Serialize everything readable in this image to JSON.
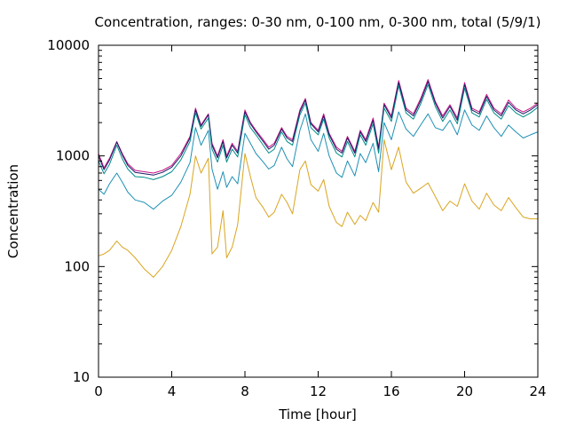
{
  "chart_data": {
    "type": "line",
    "title": "Concentration, ranges: 0-30 nm, 0-100 nm, 0-300 nm, total (5/9/1)",
    "xlabel": "Time [hour]",
    "ylabel": "Concentration",
    "xlim": [
      0,
      24
    ],
    "ylim": [
      10,
      10000
    ],
    "yscale": "log",
    "grid": false,
    "legend": "none",
    "x_ticks": [
      0,
      4,
      8,
      12,
      16,
      20,
      24
    ],
    "x_tick_labels": [
      "0",
      "4",
      "8",
      "12",
      "16",
      "20",
      "24"
    ],
    "y_ticks": [
      10,
      100,
      1000,
      10000
    ],
    "y_tick_labels": [
      "10",
      "100",
      "1000",
      "10000"
    ],
    "x": [
      0,
      0.3,
      0.6,
      1.0,
      1.3,
      1.6,
      2.0,
      2.5,
      3.0,
      3.5,
      4.0,
      4.5,
      5.0,
      5.3,
      5.6,
      6.0,
      6.2,
      6.5,
      6.8,
      7.0,
      7.3,
      7.6,
      8.0,
      8.3,
      8.6,
      9.0,
      9.3,
      9.6,
      10.0,
      10.3,
      10.6,
      11.0,
      11.3,
      11.6,
      12.0,
      12.3,
      12.6,
      13.0,
      13.3,
      13.6,
      14.0,
      14.3,
      14.6,
      15.0,
      15.3,
      15.6,
      16.0,
      16.4,
      16.8,
      17.2,
      17.6,
      18.0,
      18.4,
      18.8,
      19.2,
      19.6,
      20.0,
      20.4,
      20.8,
      21.2,
      21.6,
      22.0,
      22.4,
      22.8,
      23.2,
      23.6,
      24.0
    ],
    "series": [
      {
        "color": "#c71585",
        "values": [
          1050,
          780,
          950,
          1350,
          1050,
          850,
          740,
          720,
          700,
          740,
          820,
          1050,
          1500,
          2700,
          1900,
          2400,
          1300,
          1000,
          1400,
          1000,
          1300,
          1100,
          2600,
          2000,
          1700,
          1400,
          1200,
          1300,
          1800,
          1500,
          1400,
          2600,
          3300,
          2000,
          1700,
          2400,
          1600,
          1200,
          1100,
          1500,
          1100,
          1700,
          1400,
          2200,
          1200,
          3000,
          2300,
          4800,
          2700,
          2400,
          3300,
          4900,
          3100,
          2300,
          2900,
          2200,
          4600,
          2700,
          2500,
          3600,
          2700,
          2400,
          3200,
          2700,
          2500,
          2700,
          3000
        ]
      },
      {
        "color": "#1a1a66",
        "values": [
          1000,
          750,
          920,
          1330,
          1020,
          820,
          710,
          690,
          670,
          710,
          790,
          1000,
          1450,
          2600,
          1850,
          2350,
          1250,
          960,
          1350,
          960,
          1250,
          1060,
          2500,
          1950,
          1650,
          1350,
          1150,
          1250,
          1750,
          1450,
          1350,
          2500,
          3200,
          1950,
          1650,
          2300,
          1550,
          1150,
          1060,
          1450,
          1060,
          1650,
          1350,
          2100,
          1150,
          2900,
          2200,
          4600,
          2600,
          2300,
          3150,
          4700,
          3000,
          2200,
          2800,
          2100,
          4400,
          2600,
          2400,
          3450,
          2600,
          2300,
          3050,
          2600,
          2400,
          2600,
          2900
        ]
      },
      {
        "color": "#008b8b",
        "values": [
          900,
          690,
          840,
          1250,
          940,
          760,
          650,
          640,
          610,
          650,
          720,
          920,
          1350,
          2450,
          1750,
          2200,
          1150,
          880,
          1250,
          880,
          1150,
          980,
          2350,
          1800,
          1550,
          1250,
          1060,
          1150,
          1650,
          1350,
          1250,
          2350,
          3000,
          1800,
          1550,
          2150,
          1450,
          1060,
          980,
          1350,
          980,
          1550,
          1250,
          1950,
          1060,
          2700,
          2050,
          4300,
          2450,
          2150,
          2950,
          4400,
          2800,
          2050,
          2600,
          1950,
          4100,
          2450,
          2250,
          3250,
          2450,
          2150,
          2850,
          2450,
          2250,
          2450,
          2750
        ]
      },
      {
        "color": "#1e90b4",
        "values": [
          500,
          450,
          560,
          700,
          580,
          470,
          400,
          380,
          330,
          390,
          440,
          580,
          870,
          1800,
          1250,
          1700,
          760,
          500,
          720,
          520,
          650,
          560,
          1600,
          1300,
          1050,
          880,
          760,
          820,
          1200,
          940,
          800,
          1700,
          2400,
          1400,
          1100,
          1600,
          1000,
          700,
          640,
          900,
          660,
          1050,
          870,
          1300,
          720,
          2000,
          1400,
          2500,
          1750,
          1500,
          1900,
          2400,
          1800,
          1700,
          2100,
          1550,
          2600,
          1900,
          1700,
          2300,
          1800,
          1500,
          1900,
          1650,
          1450,
          1550,
          1650
        ]
      },
      {
        "color": "#daa520",
        "values": [
          125,
          130,
          140,
          170,
          150,
          140,
          120,
          95,
          80,
          100,
          140,
          230,
          450,
          1000,
          700,
          950,
          130,
          150,
          320,
          120,
          150,
          240,
          1050,
          650,
          420,
          340,
          280,
          310,
          450,
          380,
          300,
          750,
          900,
          550,
          480,
          610,
          350,
          250,
          230,
          310,
          240,
          290,
          260,
          380,
          310,
          1400,
          750,
          1200,
          580,
          460,
          510,
          570,
          430,
          320,
          390,
          350,
          560,
          390,
          330,
          460,
          360,
          320,
          420,
          340,
          280,
          270,
          270
        ]
      }
    ]
  }
}
